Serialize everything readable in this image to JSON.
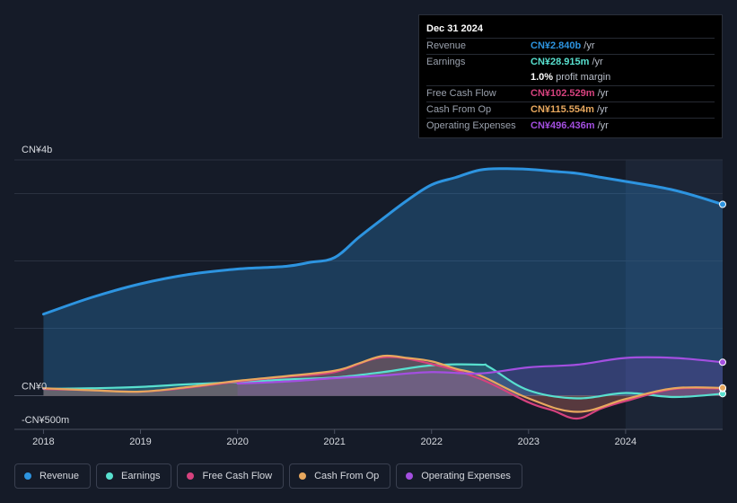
{
  "chart_data": {
    "type": "area",
    "title": "",
    "currency": "CN¥",
    "y_tick_labels": [
      "CN¥4b",
      "CN¥0",
      "-CN¥500m"
    ],
    "x_tick_labels": [
      "2018",
      "2019",
      "2020",
      "2021",
      "2022",
      "2023",
      "2024"
    ],
    "ylim": [
      -500,
      3500
    ],
    "xlim": [
      2017.7,
      2025.0
    ],
    "y_grid_values": [
      3000,
      2000,
      1000,
      0
    ],
    "forecast_shade_start": 2024.0,
    "series": [
      {
        "name": "Revenue",
        "color": "#2d94e0",
        "fill": true,
        "x": [
          2018.0,
          2018.5,
          2019.0,
          2019.5,
          2020.0,
          2020.5,
          2020.75,
          2021.0,
          2021.25,
          2021.5,
          2021.75,
          2022.0,
          2022.25,
          2022.5,
          2022.75,
          2023.0,
          2023.25,
          2023.5,
          2023.75,
          2024.0,
          2024.5,
          2025.0
        ],
        "y": [
          1210,
          1460,
          1660,
          1800,
          1880,
          1920,
          1980,
          2050,
          2350,
          2630,
          2900,
          3130,
          3240,
          3350,
          3370,
          3360,
          3330,
          3300,
          3240,
          3180,
          3050,
          2840
        ]
      },
      {
        "name": "Earnings",
        "color": "#58e0cf",
        "fill": false,
        "x": [
          2018.0,
          2018.5,
          2019.0,
          2019.5,
          2020.0,
          2020.5,
          2021.0,
          2021.5,
          2022.0,
          2022.5,
          2022.6,
          2023.0,
          2023.5,
          2024.0,
          2024.5,
          2025.0
        ],
        "y": [
          100,
          110,
          130,
          170,
          200,
          240,
          270,
          350,
          450,
          460,
          420,
          80,
          -40,
          40,
          -20,
          29
        ]
      },
      {
        "name": "Free Cash Flow",
        "color": "#d6427e",
        "fill": false,
        "x": [
          2018.0,
          2018.5,
          2019.0,
          2019.5,
          2020.0,
          2020.5,
          2021.0,
          2021.5,
          2022.0,
          2022.5,
          2023.0,
          2023.25,
          2023.5,
          2023.75,
          2024.0,
          2024.5,
          2025.0
        ],
        "y": [
          100,
          80,
          60,
          120,
          210,
          280,
          350,
          570,
          470,
          250,
          -100,
          -220,
          -340,
          -190,
          -80,
          100,
          103
        ]
      },
      {
        "name": "Cash From Op",
        "color": "#e8a85e",
        "fill": false,
        "x": [
          2018.0,
          2018.5,
          2019.0,
          2019.5,
          2020.0,
          2020.5,
          2021.0,
          2021.25,
          2021.5,
          2021.75,
          2022.0,
          2022.25,
          2022.5,
          2023.0,
          2023.5,
          2024.0,
          2024.5,
          2025.0
        ],
        "y": [
          110,
          80,
          60,
          130,
          220,
          290,
          370,
          480,
          590,
          560,
          510,
          400,
          300,
          -40,
          -240,
          -50,
          110,
          116
        ]
      },
      {
        "name": "Operating Expenses",
        "color": "#a34fe0",
        "fill": false,
        "x": [
          2020.0,
          2020.5,
          2021.0,
          2021.5,
          2022.0,
          2022.5,
          2023.0,
          2023.5,
          2024.0,
          2024.5,
          2025.0
        ],
        "y": [
          180,
          210,
          260,
          300,
          350,
          330,
          420,
          460,
          560,
          560,
          496
        ]
      }
    ]
  },
  "tooltip": {
    "date": "Dec 31 2024",
    "rows": [
      {
        "label": "Revenue",
        "value": "CN¥2.840b",
        "unit": "/yr",
        "color": "#2d94e0"
      },
      {
        "label": "Earnings",
        "value": "CN¥28.915m",
        "unit": "/yr",
        "color": "#58e0cf"
      },
      {
        "label": "",
        "value": "1.0%",
        "unit": "profit margin",
        "color": "#ffffff"
      },
      {
        "label": "Free Cash Flow",
        "value": "CN¥102.529m",
        "unit": "/yr",
        "color": "#d6427e"
      },
      {
        "label": "Cash From Op",
        "value": "CN¥115.554m",
        "unit": "/yr",
        "color": "#e8a85e"
      },
      {
        "label": "Operating Expenses",
        "value": "CN¥496.436m",
        "unit": "/yr",
        "color": "#a34fe0"
      }
    ]
  },
  "legend": {
    "items": [
      {
        "label": "Revenue",
        "color": "#2d94e0"
      },
      {
        "label": "Earnings",
        "color": "#58e0cf"
      },
      {
        "label": "Free Cash Flow",
        "color": "#d6427e"
      },
      {
        "label": "Cash From Op",
        "color": "#e8a85e"
      },
      {
        "label": "Operating Expenses",
        "color": "#a34fe0"
      }
    ]
  }
}
